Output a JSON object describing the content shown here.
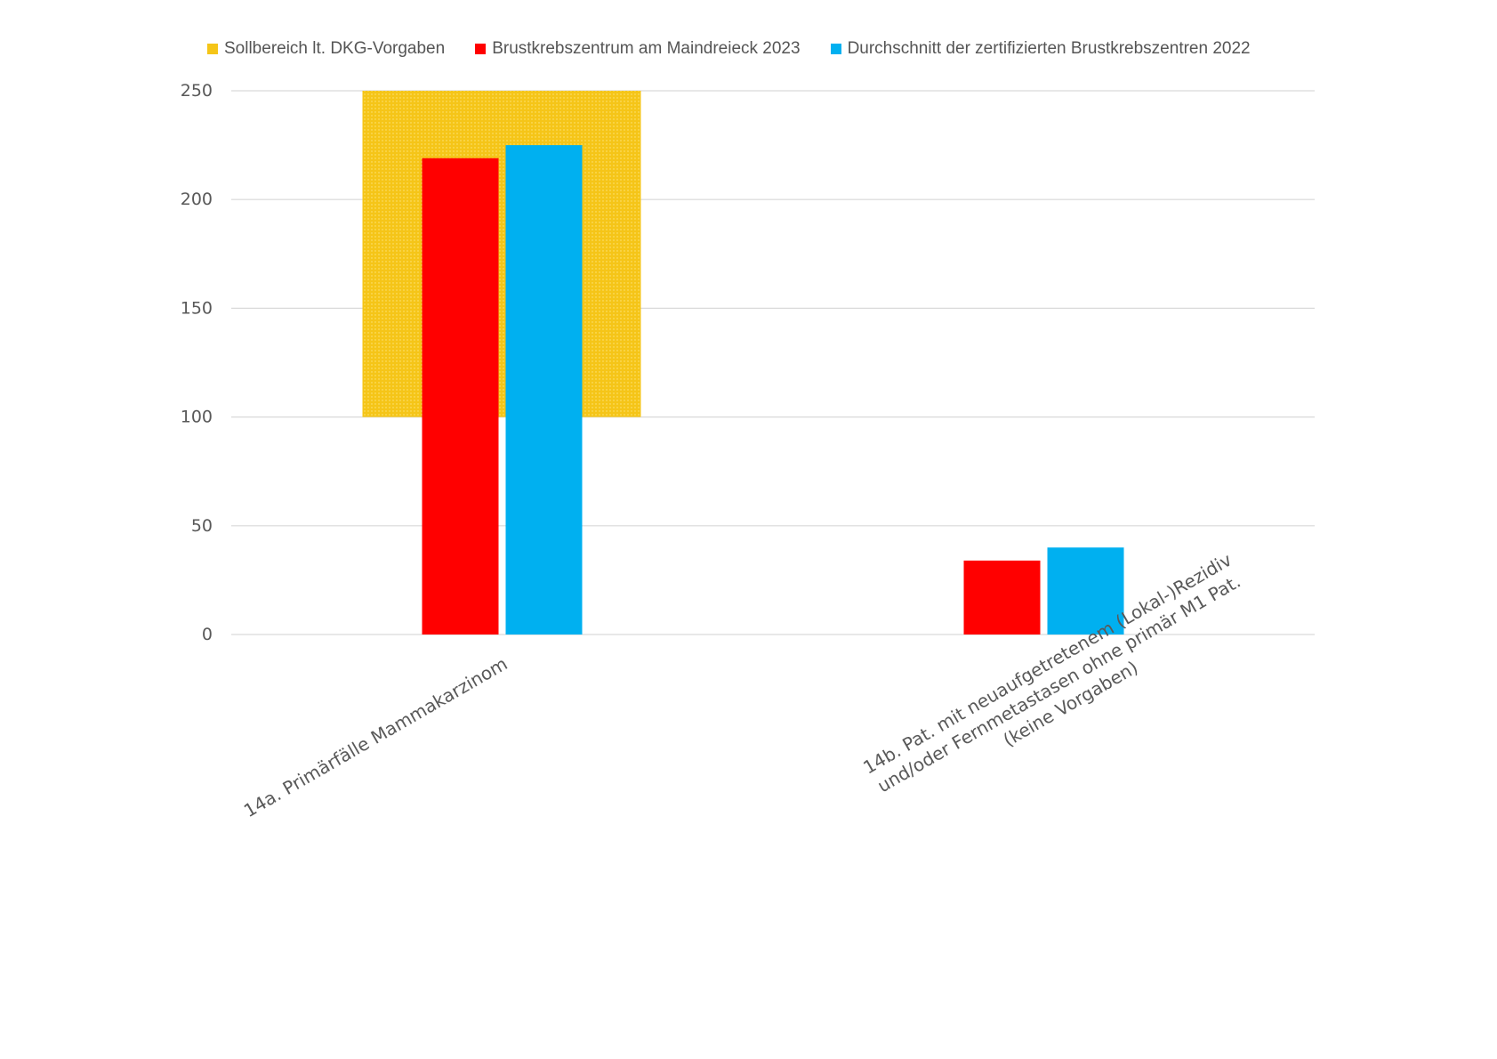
{
  "chart_data": {
    "type": "bar",
    "categories": [
      [
        "14a. Primärfälle Mammakarzinom"
      ],
      [
        "14b. Pat. mit neuaufgetretenem (Lokal-)Rezidiv",
        "und/oder Fernmetastasen ohne primär M1 Pat.",
        "(keine Vorgaben)"
      ]
    ],
    "series": [
      {
        "name": "Brustkrebszentrum am Maindreieck 2023",
        "color": "#ff0000",
        "values": [
          219,
          34
        ]
      },
      {
        "name": "Durchschnitt der zertifizierten Brustkrebszentren 2022",
        "color": "#00b0f0",
        "values": [
          225,
          40
        ]
      }
    ],
    "target_range": {
      "name": "Sollbereich lt. DKG-Vorgaben",
      "color": "#f5c518",
      "category_index": 0,
      "from": 100,
      "to": 250
    },
    "ylim": [
      0,
      250
    ],
    "yticks": [
      "0",
      "50",
      "100",
      "150",
      "200",
      "250"
    ],
    "grid": true,
    "legend_position": "top",
    "xlabel": "",
    "ylabel": "",
    "title": ""
  }
}
